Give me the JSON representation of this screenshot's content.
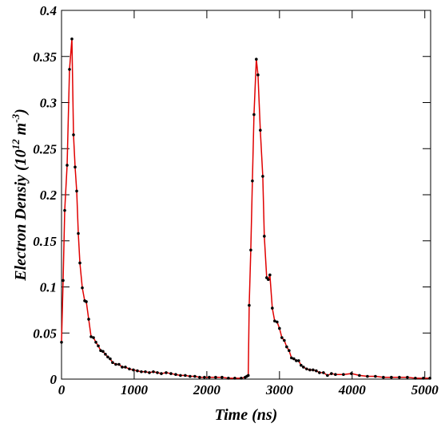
{
  "chart_data": {
    "type": "line",
    "xlabel": "Time (ns)",
    "ylabel": [
      "Electron Densiy (10",
      "12",
      " m",
      "-3",
      ")"
    ],
    "xlim": [
      0,
      5080
    ],
    "ylim": [
      0,
      0.4
    ],
    "xticks": [
      0,
      1000,
      2000,
      3000,
      4000,
      5000
    ],
    "yticks": [
      0,
      0.05,
      0.1,
      0.15,
      0.2,
      0.25,
      0.3,
      0.35,
      0.4
    ],
    "grid": false,
    "series": [
      {
        "color": "#e00000",
        "marker_color": "#000000",
        "x": [
          0,
          22,
          44,
          77,
          110,
          143,
          165,
          187,
          209,
          231,
          253,
          286,
          319,
          341,
          374,
          407,
          440,
          473,
          506,
          539,
          571,
          604,
          637,
          670,
          703,
          747,
          791,
          835,
          879,
          934,
          989,
          1044,
          1099,
          1154,
          1209,
          1264,
          1319,
          1374,
          1440,
          1506,
          1572,
          1637,
          1703,
          1769,
          1835,
          1901,
          1967,
          2033,
          2121,
          2209,
          2297,
          2385,
          2473,
          2528,
          2550,
          2570,
          2583,
          2605,
          2627,
          2649,
          2681,
          2704,
          2736,
          2770,
          2791,
          2824,
          2846,
          2868,
          2901,
          2934,
          2967,
          3000,
          3033,
          3066,
          3099,
          3132,
          3165,
          3198,
          3231,
          3264,
          3297,
          3330,
          3374,
          3418,
          3462,
          3506,
          3550,
          3605,
          3660,
          3715,
          3770,
          3880,
          3990,
          4100,
          4210,
          4320,
          4430,
          4540,
          4650,
          4760,
          4870,
          4980,
          5070
        ],
        "values": [
          0.04,
          0.107,
          0.183,
          0.232,
          0.336,
          0.369,
          0.265,
          0.23,
          0.204,
          0.158,
          0.126,
          0.099,
          0.085,
          0.084,
          0.065,
          0.046,
          0.045,
          0.04,
          0.036,
          0.031,
          0.03,
          0.027,
          0.024,
          0.022,
          0.018,
          0.016,
          0.016,
          0.013,
          0.013,
          0.011,
          0.01,
          0.009,
          0.008,
          0.008,
          0.007,
          0.008,
          0.007,
          0.006,
          0.007,
          0.006,
          0.005,
          0.004,
          0.004,
          0.003,
          0.003,
          0.002,
          0.002,
          0.002,
          0.002,
          0.002,
          0.001,
          0.001,
          0.001,
          0.002,
          0.003,
          0.004,
          0.08,
          0.14,
          0.215,
          0.287,
          0.347,
          0.33,
          0.27,
          0.22,
          0.155,
          0.11,
          0.108,
          0.113,
          0.077,
          0.063,
          0.062,
          0.055,
          0.045,
          0.042,
          0.035,
          0.031,
          0.023,
          0.022,
          0.02,
          0.02,
          0.015,
          0.013,
          0.011,
          0.01,
          0.01,
          0.009,
          0.007,
          0.007,
          0.004,
          0.006,
          0.005,
          0.005,
          0.006,
          0.004,
          0.003,
          0.003,
          0.002,
          0.002,
          0.002,
          0.002,
          0.001,
          0.001,
          0.001
        ]
      }
    ]
  }
}
